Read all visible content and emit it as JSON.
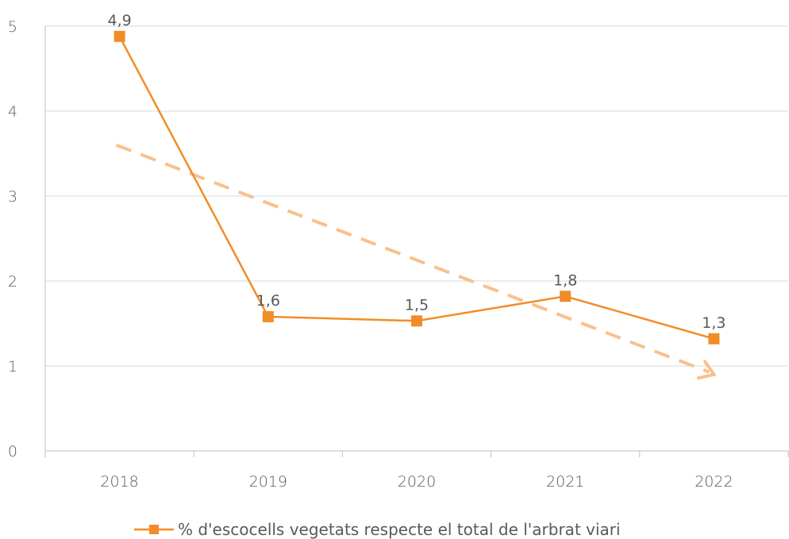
{
  "chart_data": {
    "type": "line",
    "categories": [
      "2018",
      "2019",
      "2020",
      "2021",
      "2022"
    ],
    "series": [
      {
        "name": "% d'escocells vegetats  respecte el total de l'arbrat viari",
        "values": [
          4.88,
          1.58,
          1.53,
          1.82,
          1.32
        ],
        "labels": [
          "4,9",
          "1,6",
          "1,5",
          "1,8",
          "1,3"
        ],
        "color": "#F28C28"
      }
    ],
    "trendline": {
      "start": 3.6,
      "end": 0.9,
      "color": "#F9C08C",
      "style": "dashed-arrow"
    },
    "yticks": [
      "0",
      "1",
      "2",
      "3",
      "4",
      "5"
    ],
    "ylim": [
      0,
      5
    ],
    "grid": "horizontal",
    "legend": "bottom-center",
    "title": "",
    "xlabel": "",
    "ylabel": ""
  }
}
